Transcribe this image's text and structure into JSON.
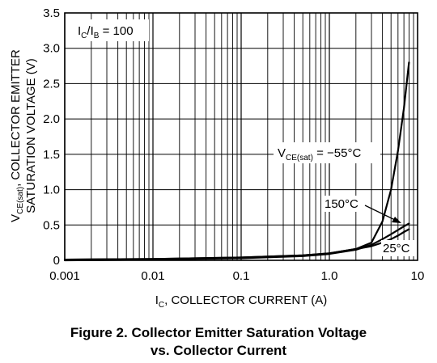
{
  "chart_data": {
    "type": "line",
    "x_scale": "log",
    "xlim": [
      0.001,
      10
    ],
    "ylim": [
      0,
      3.5
    ],
    "grid": true,
    "xticks": [
      0.001,
      0.01,
      0.1,
      1.0,
      10
    ],
    "xtick_labels": [
      "0.001",
      "0.01",
      "0.1",
      "1.0",
      "10"
    ],
    "yticks": [
      0,
      0.5,
      1.0,
      1.5,
      2.0,
      2.5,
      3.0,
      3.5
    ],
    "ytick_labels": [
      "0",
      "0.5",
      "1.0",
      "1.5",
      "2.0",
      "2.5",
      "3.0",
      "3.5"
    ],
    "xlabel": {
      "main": "I",
      "sub": "C",
      "rest": ", COLLECTOR CURRENT (A)"
    },
    "ylabel_line1": {
      "main": "V",
      "sub": "CE(sat)",
      "rest": ", COLLECTOR EMITTER"
    },
    "ylabel_line2": "SATURATION VOLTAGE (V)",
    "condition": {
      "a": "I",
      "a_sub": "C",
      "sep": "/I",
      "b_sub": "B",
      "rest": " = 100"
    },
    "annotations": [
      {
        "id": "neg55",
        "main": "V",
        "sub": "CE(sat)",
        "rest": " = −55°C"
      },
      {
        "id": "150",
        "text": "150°C"
      },
      {
        "id": "25",
        "text": "25°C"
      }
    ],
    "series": [
      {
        "label": "−55°C",
        "x": [
          0.001,
          0.01,
          0.1,
          0.5,
          1.0,
          2.0,
          3.0,
          4.0,
          5.0,
          6.0,
          7.0,
          8.0
        ],
        "y": [
          0.01,
          0.02,
          0.04,
          0.07,
          0.1,
          0.16,
          0.25,
          0.55,
          1.0,
          1.55,
          2.15,
          2.8
        ]
      },
      {
        "label": "150°C",
        "x": [
          0.001,
          0.01,
          0.1,
          0.5,
          1.0,
          2.0,
          3.0,
          4.0,
          5.0,
          6.0,
          7.0,
          8.0
        ],
        "y": [
          0.0,
          0.01,
          0.03,
          0.06,
          0.09,
          0.15,
          0.22,
          0.3,
          0.37,
          0.43,
          0.48,
          0.52
        ]
      },
      {
        "label": "25°C",
        "x": [
          0.001,
          0.01,
          0.1,
          0.5,
          1.0,
          2.0,
          3.0,
          4.0,
          5.0,
          6.0,
          7.0,
          8.0
        ],
        "y": [
          0.01,
          0.02,
          0.04,
          0.07,
          0.1,
          0.16,
          0.2,
          0.25,
          0.3,
          0.35,
          0.4,
          0.44
        ]
      }
    ]
  },
  "caption": {
    "line1": "Figure 2. Collector Emitter Saturation Voltage",
    "line2": "vs. Collector Current"
  }
}
